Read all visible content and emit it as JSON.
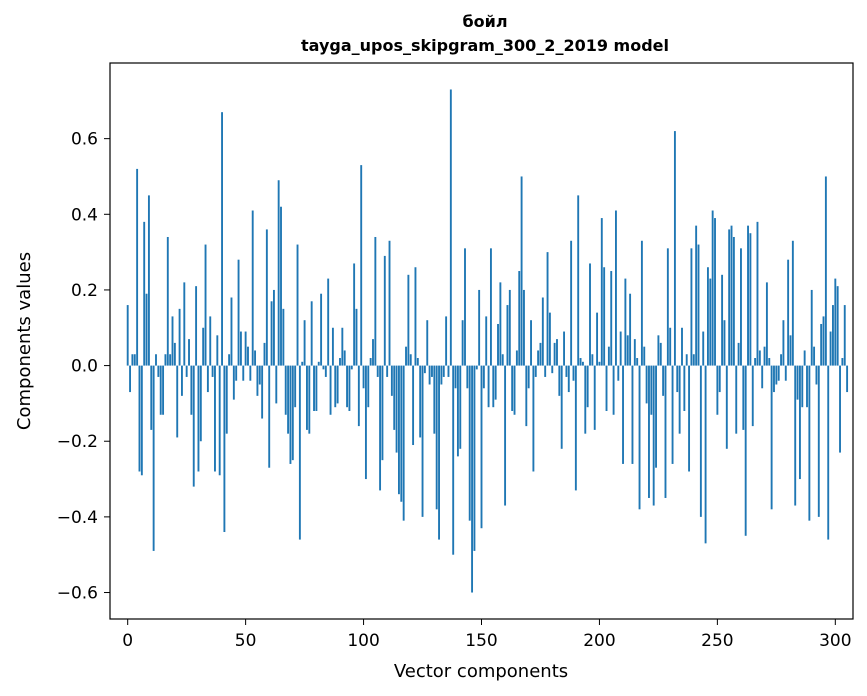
{
  "chart_data": {
    "type": "bar",
    "title": "бойл",
    "subtitle": "tayga_upos_skipgram_300_2_2019 model",
    "xlabel": "Vector components",
    "ylabel": "Components values",
    "xlim": [
      -7.5,
      307.5
    ],
    "ylim": [
      -0.67,
      0.8
    ],
    "xticks": [
      0,
      50,
      100,
      150,
      200,
      250,
      300
    ],
    "yticks": [
      -0.6,
      -0.4,
      -0.2,
      0.0,
      0.2,
      0.4,
      0.6
    ],
    "xtick_labels": [
      "0",
      "50",
      "100",
      "150",
      "200",
      "250",
      "300"
    ],
    "ytick_labels": [
      "−0.6",
      "−0.4",
      "−0.2",
      "0.0",
      "0.2",
      "0.4",
      "0.6"
    ],
    "bar_color": "#1f77b4",
    "values": [
      0.16,
      -0.07,
      0.03,
      0.03,
      0.52,
      -0.28,
      -0.29,
      0.38,
      0.19,
      0.45,
      -0.17,
      -0.49,
      0.03,
      -0.03,
      -0.13,
      -0.13,
      0.03,
      0.34,
      0.03,
      0.13,
      0.06,
      -0.19,
      0.15,
      -0.08,
      0.22,
      -0.03,
      0.07,
      -0.13,
      -0.32,
      0.21,
      -0.28,
      -0.2,
      0.1,
      0.32,
      -0.07,
      0.13,
      -0.03,
      -0.28,
      0.08,
      -0.29,
      0.67,
      -0.44,
      -0.18,
      0.03,
      0.18,
      -0.09,
      -0.04,
      0.28,
      0.09,
      -0.04,
      0.09,
      0.05,
      -0.04,
      0.41,
      0.04,
      -0.08,
      -0.05,
      -0.14,
      0.06,
      0.36,
      -0.27,
      0.17,
      0.2,
      -0.1,
      0.49,
      0.42,
      0.15,
      -0.13,
      -0.18,
      -0.26,
      -0.25,
      -0.11,
      0.32,
      -0.46,
      0.01,
      0.12,
      -0.17,
      -0.18,
      0.17,
      -0.12,
      -0.12,
      0.01,
      0.19,
      -0.01,
      -0.03,
      0.23,
      -0.13,
      0.1,
      -0.11,
      -0.1,
      0.02,
      0.1,
      0.04,
      -0.11,
      -0.12,
      -0.01,
      0.27,
      0.15,
      -0.16,
      0.53,
      -0.06,
      -0.3,
      -0.11,
      0.02,
      0.07,
      0.34,
      -0.03,
      -0.33,
      -0.25,
      0.29,
      -0.03,
      0.33,
      -0.08,
      -0.17,
      -0.23,
      -0.34,
      -0.36,
      -0.41,
      0.05,
      0.24,
      0.03,
      -0.21,
      0.26,
      0.02,
      -0.19,
      -0.4,
      -0.02,
      0.12,
      -0.05,
      -0.03,
      -0.18,
      -0.38,
      -0.46,
      -0.05,
      -0.03,
      0.13,
      -0.03,
      0.73,
      -0.5,
      -0.06,
      -0.24,
      -0.22,
      0.12,
      0.31,
      -0.06,
      -0.41,
      -0.6,
      -0.49,
      -0.01,
      0.2,
      -0.43,
      -0.06,
      0.13,
      -0.11,
      0.31,
      -0.11,
      -0.09,
      0.11,
      0.22,
      0.03,
      -0.37,
      0.16,
      0.2,
      -0.12,
      -0.13,
      0.04,
      0.25,
      0.5,
      0.2,
      -0.16,
      -0.06,
      0.12,
      -0.28,
      -0.03,
      0.04,
      0.06,
      0.18,
      -0.03,
      0.3,
      0.14,
      -0.02,
      0.06,
      0.07,
      -0.08,
      -0.22,
      0.09,
      -0.03,
      -0.07,
      0.33,
      -0.04,
      -0.33,
      0.45,
      0.02,
      0.01,
      -0.18,
      -0.11,
      0.27,
      0.03,
      -0.17,
      0.14,
      0.01,
      0.39,
      0.26,
      -0.12,
      0.05,
      0.25,
      -0.13,
      0.41,
      -0.04,
      0.09,
      -0.26,
      0.23,
      0.08,
      0.19,
      -0.26,
      0.07,
      0.02,
      -0.38,
      0.33,
      0.05,
      -0.1,
      -0.35,
      -0.13,
      -0.37,
      -0.27,
      0.08,
      0.06,
      -0.08,
      -0.35,
      0.31,
      0.1,
      -0.26,
      0.62,
      -0.07,
      -0.18,
      0.1,
      -0.12,
      0.03,
      -0.28,
      0.31,
      0.03,
      0.37,
      0.32,
      -0.4,
      0.09,
      -0.47,
      0.26,
      0.23,
      0.41,
      0.39,
      -0.13,
      -0.07,
      0.24,
      0.12,
      -0.22,
      0.36,
      0.37,
      0.34,
      -0.18,
      0.06,
      0.31,
      -0.17,
      -0.45,
      0.37,
      0.35,
      -0.16,
      0.02,
      0.38,
      0.04,
      -0.06,
      0.05,
      0.22,
      0.02,
      -0.38,
      -0.07,
      -0.05,
      -0.04,
      0.03,
      0.12,
      -0.04,
      0.28,
      0.08,
      0.33,
      -0.37,
      -0.09,
      -0.3,
      -0.11,
      0.04,
      -0.11,
      -0.41,
      0.2,
      0.05,
      -0.05,
      -0.4,
      0.11,
      0.13,
      0.5,
      -0.46,
      0.09,
      0.16,
      0.23,
      0.21,
      -0.23,
      0.02,
      0.16,
      -0.07
    ]
  }
}
